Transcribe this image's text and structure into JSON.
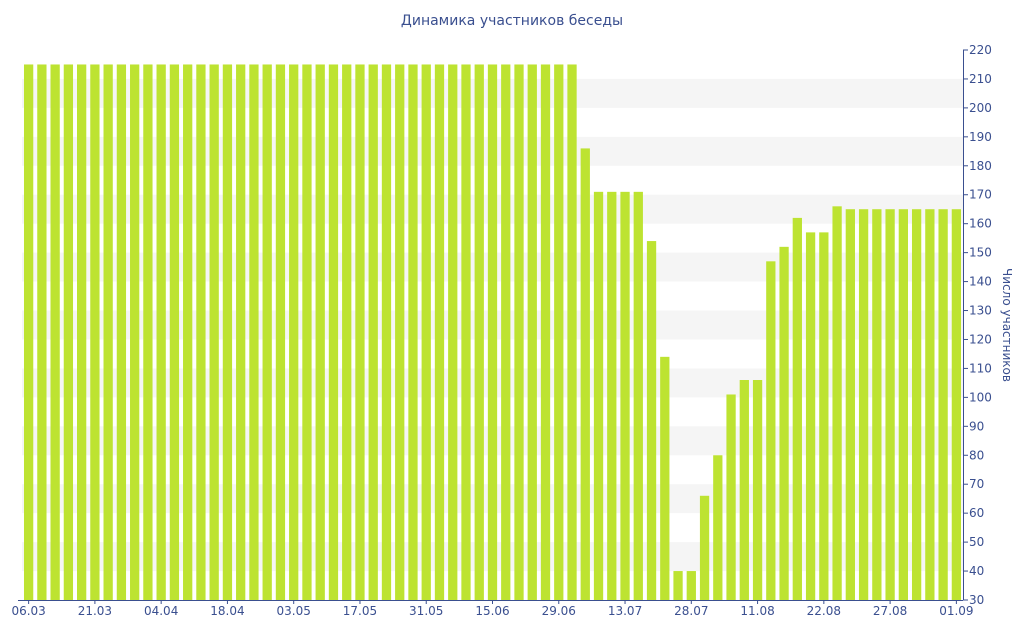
{
  "chart_data": {
    "type": "bar",
    "title": "Динамика участников беседы",
    "ylabel": "Число участников",
    "xlabel": "",
    "ylim": [
      30,
      220
    ],
    "y_ticks": [
      30,
      40,
      50,
      60,
      70,
      80,
      90,
      100,
      110,
      120,
      130,
      140,
      150,
      160,
      170,
      180,
      190,
      200,
      210,
      220
    ],
    "x_tick_labels": [
      {
        "label": "06.03",
        "index": 0
      },
      {
        "label": "21.03",
        "index": 5
      },
      {
        "label": "04.04",
        "index": 10
      },
      {
        "label": "18.04",
        "index": 15
      },
      {
        "label": "03.05",
        "index": 20
      },
      {
        "label": "17.05",
        "index": 25
      },
      {
        "label": "31.05",
        "index": 30
      },
      {
        "label": "15.06",
        "index": 35
      },
      {
        "label": "29.06",
        "index": 40
      },
      {
        "label": "13.07",
        "index": 45
      },
      {
        "label": "28.07",
        "index": 50
      },
      {
        "label": "11.08",
        "index": 55
      },
      {
        "label": "22.08",
        "index": 60
      },
      {
        "label": "27.08",
        "index": 65
      },
      {
        "label": "01.09",
        "index": 70
      }
    ],
    "values": [
      215,
      215,
      215,
      215,
      215,
      215,
      215,
      215,
      215,
      215,
      215,
      215,
      215,
      215,
      215,
      215,
      215,
      215,
      215,
      215,
      215,
      215,
      215,
      215,
      215,
      215,
      215,
      215,
      215,
      215,
      215,
      215,
      215,
      215,
      215,
      215,
      215,
      215,
      215,
      215,
      215,
      215,
      186,
      171,
      171,
      171,
      171,
      154,
      114,
      40,
      40,
      66,
      80,
      101,
      106,
      106,
      147,
      152,
      162,
      157,
      157,
      166,
      165,
      165,
      165,
      165,
      165,
      165,
      165,
      165,
      165
    ],
    "grid": true,
    "y_axis_side": "right",
    "colors": {
      "bar": "#bde331",
      "text": "#3a4f8f",
      "axis": "#3a4f8f",
      "grid_band": "#f5f5f5"
    }
  }
}
